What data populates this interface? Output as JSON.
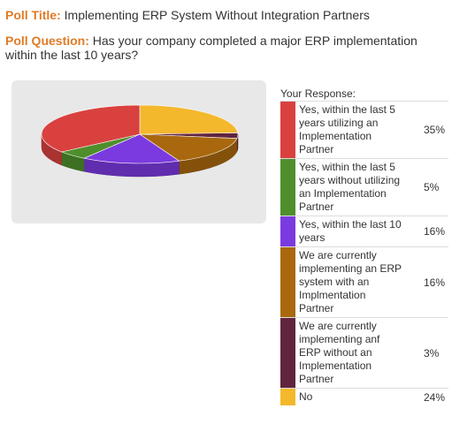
{
  "header": {
    "title_label": "Poll Title:",
    "title_text": "Implementing ERP System Without Integration Partners",
    "question_label": "Poll Question:",
    "question_text": "Has your company completed a major ERP implementation within the last 10 years?"
  },
  "legend": {
    "heading": "Your Response:"
  },
  "chart_data": {
    "type": "pie",
    "style": "3d",
    "title": "",
    "legend_title": "Your Response:",
    "legend_position": "right",
    "slices": [
      {
        "label": "Yes, within the last 5 years utilizing an Implementation Partner",
        "value": 35,
        "value_label": "35%",
        "color": "#d9413f"
      },
      {
        "label": "Yes, within the last 5 years without utilizing an Implementation Partner",
        "value": 5,
        "value_label": "5%",
        "color": "#4e8f2c"
      },
      {
        "label": "Yes, within the last 10 years",
        "value": 16,
        "value_label": "16%",
        "color": "#7b3adf"
      },
      {
        "label": "We are currently implementing an ERP system with an Implmentation Partner",
        "value": 16,
        "value_label": "16%",
        "color": "#a9680e"
      },
      {
        "label": "We are currently implementing anf ERP without an Implementation Partner",
        "value": 3,
        "value_label": "3%",
        "color": "#61243f"
      },
      {
        "label": "No",
        "value": 24,
        "value_label": "24%",
        "color": "#f4b82d"
      }
    ]
  }
}
